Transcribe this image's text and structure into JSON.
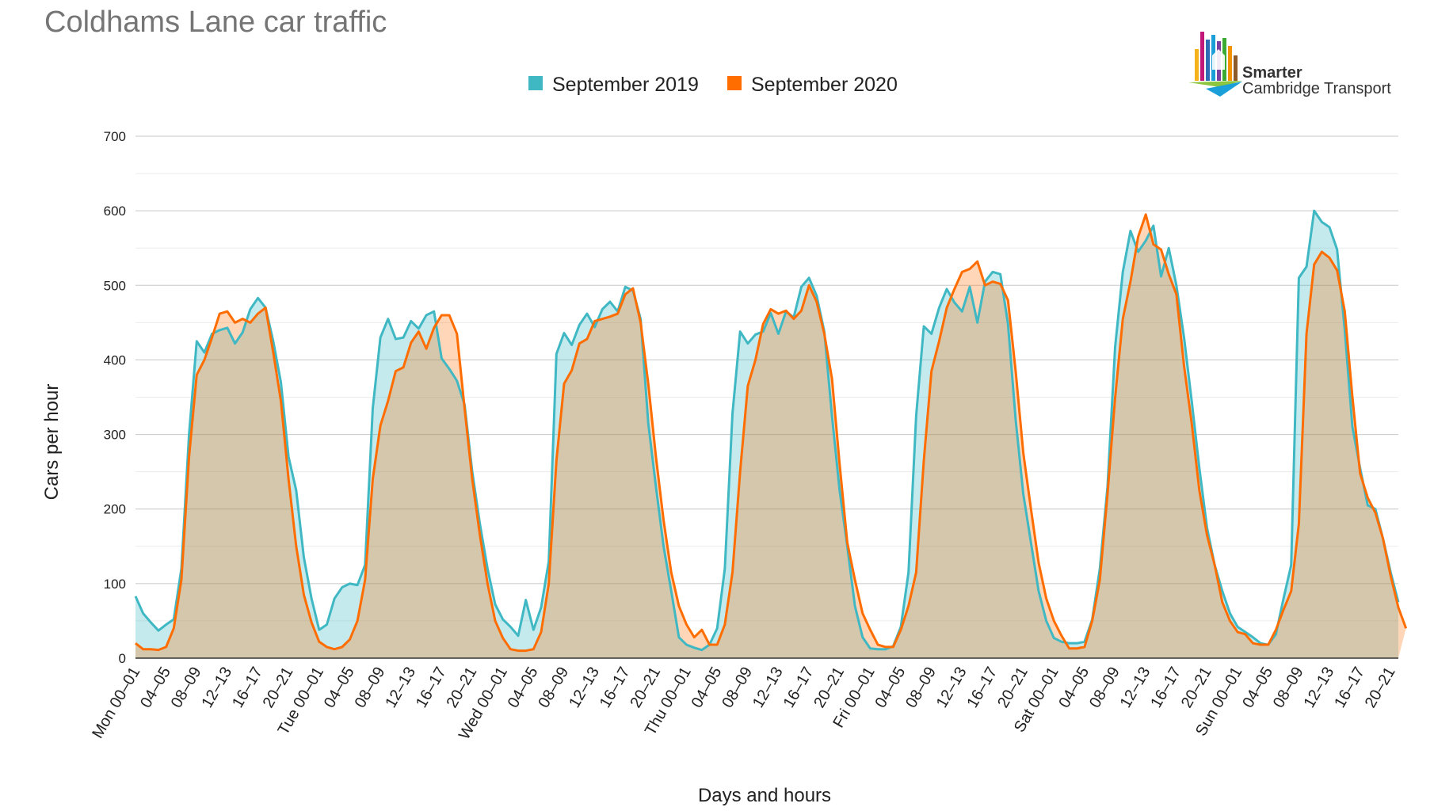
{
  "chart_data": {
    "type": "area",
    "title": "Coldhams Lane car traffic",
    "xlabel": "Days and hours",
    "ylabel": "Cars per hour",
    "ylim": [
      0,
      700
    ],
    "yticks": [
      0,
      100,
      200,
      300,
      400,
      500,
      600,
      700
    ],
    "grid": true,
    "legend_position": "top-center",
    "tick_labels": [
      "Mon 00–01",
      "04–05",
      "08–09",
      "12–13",
      "16–17",
      "20–21",
      "Tue 00–01",
      "04–05",
      "08–09",
      "12–13",
      "16–17",
      "20–21",
      "Wed 00–01",
      "04–05",
      "08–09",
      "12–13",
      "16–17",
      "20–21",
      "Thu 00–01",
      "04–05",
      "08–09",
      "12–13",
      "16–17",
      "20–21",
      "Fri 00–01",
      "04–05",
      "08–09",
      "12–13",
      "16–17",
      "20–21",
      "Sat 00–01",
      "04–05",
      "08–09",
      "12–13",
      "16–17",
      "20–21",
      "Sun 00–01",
      "04–05",
      "08–09",
      "12–13",
      "16–17",
      "20–21"
    ],
    "series": [
      {
        "name": "September 2019",
        "color": "#3fb8c4",
        "values": [
          83,
          60,
          48,
          37,
          45,
          52,
          120,
          300,
          425,
          410,
          435,
          440,
          443,
          422,
          437,
          468,
          483,
          470,
          425,
          370,
          270,
          225,
          135,
          80,
          38,
          45,
          80,
          95,
          100,
          98,
          125,
          335,
          430,
          455,
          428,
          430,
          452,
          442,
          460,
          465,
          402,
          388,
          372,
          340,
          250,
          180,
          120,
          72,
          52,
          42,
          30,
          78,
          38,
          68,
          130,
          408,
          436,
          420,
          447,
          462,
          444,
          468,
          478,
          465,
          498,
          493,
          455,
          315,
          230,
          150,
          90,
          28,
          18,
          14,
          11,
          18,
          40,
          120,
          328,
          438,
          422,
          434,
          438,
          463,
          435,
          465,
          457,
          498,
          510,
          486,
          438,
          325,
          225,
          150,
          70,
          28,
          13,
          12,
          12,
          16,
          42,
          115,
          325,
          445,
          435,
          470,
          495,
          477,
          465,
          498,
          450,
          505,
          518,
          515,
          448,
          320,
          220,
          155,
          90,
          50,
          27,
          22,
          20,
          20,
          22,
          52,
          120,
          230,
          418,
          518,
          573,
          545,
          560,
          580,
          512,
          550,
          500,
          430,
          345,
          255,
          175,
          125,
          90,
          60,
          42,
          35,
          28,
          20,
          18,
          32,
          80,
          125,
          510,
          525,
          600,
          585,
          578,
          548,
          440,
          310,
          255,
          205,
          200,
          160,
          115,
          75
        ]
      },
      {
        "name": "September 2020",
        "color": "#ff6d00",
        "values": [
          20,
          12,
          12,
          11,
          15,
          40,
          105,
          270,
          380,
          400,
          430,
          462,
          465,
          450,
          455,
          450,
          462,
          470,
          410,
          345,
          240,
          150,
          85,
          48,
          22,
          15,
          12,
          15,
          25,
          50,
          105,
          240,
          312,
          345,
          385,
          390,
          423,
          438,
          415,
          443,
          460,
          460,
          435,
          335,
          240,
          165,
          100,
          50,
          27,
          12,
          10,
          10,
          12,
          35,
          100,
          265,
          368,
          386,
          422,
          428,
          452,
          455,
          458,
          462,
          488,
          496,
          450,
          368,
          270,
          185,
          115,
          70,
          45,
          28,
          38,
          18,
          18,
          45,
          115,
          250,
          365,
          400,
          448,
          468,
          462,
          466,
          455,
          466,
          500,
          478,
          435,
          375,
          260,
          155,
          105,
          60,
          38,
          18,
          15,
          15,
          38,
          70,
          115,
          265,
          385,
          425,
          470,
          495,
          518,
          522,
          532,
          500,
          505,
          502,
          480,
          385,
          275,
          200,
          128,
          80,
          50,
          30,
          13,
          13,
          15,
          50,
          105,
          220,
          350,
          455,
          505,
          565,
          595,
          555,
          548,
          515,
          488,
          392,
          315,
          225,
          165,
          125,
          75,
          50,
          35,
          32,
          20,
          18,
          18,
          38,
          65,
          90,
          180,
          435,
          528,
          545,
          537,
          520,
          465,
          350,
          248,
          215,
          195,
          160,
          110,
          68,
          40
        ]
      }
    ]
  },
  "logo": {
    "line1": "Smarter",
    "line2": "Cambridge Transport"
  }
}
